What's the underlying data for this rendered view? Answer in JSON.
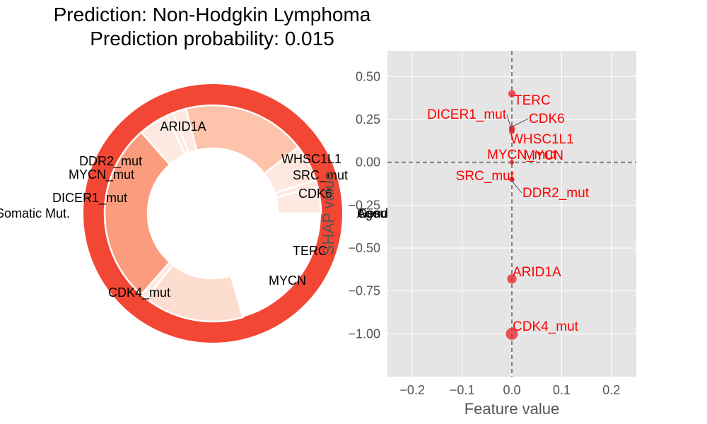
{
  "figure": {
    "title_line1": "Prediction: Non-Hodgkin Lymphoma",
    "title_line2": "Prediction probability: 0.015"
  },
  "chart_data": [
    {
      "type": "pie",
      "variant": "nested-donut",
      "colors": {
        "outer_ring": "#f24734",
        "arid1a": "#fdc3ab",
        "cdk4_mut": "#fc9c7e",
        "terc": "#fdddd0",
        "small": "#fee9e0",
        "separator": "#ffffff"
      },
      "outer_ring": {
        "labels": [
          "Somatic Mut.",
          "Age",
          "Gender",
          "Tissue"
        ],
        "fractions": [
          1.0,
          0.0,
          0.0,
          0.0
        ]
      },
      "inner_ring": {
        "slices": [
          {
            "label": "WHSC1L1",
            "fraction": 0.04,
            "shade": "small"
          },
          {
            "label": "SRC_mut",
            "fraction": 0.01,
            "shade": "small"
          },
          {
            "label": "CDK6",
            "fraction": 0.055,
            "shade": "small"
          },
          {
            "label": "ARID1A",
            "fraction": 0.185,
            "shade": "arid1a"
          },
          {
            "label": "DDR2_mut",
            "fraction": 0.02,
            "shade": "small"
          },
          {
            "label": "MYCN_mut",
            "fraction": 0.01,
            "shade": "small"
          },
          {
            "label": "DICER1_mut",
            "fraction": 0.045,
            "shade": "small"
          },
          {
            "label": "CDK4_mut",
            "fraction": 0.27,
            "shade": "cdk4_mut"
          },
          {
            "label": "MYCN",
            "fraction": 0.01,
            "shade": "small"
          },
          {
            "label": "TERC",
            "fraction": 0.15,
            "shade": "terc"
          }
        ]
      }
    },
    {
      "type": "scatter",
      "xlabel": "Feature value",
      "ylabel": "SHAP value",
      "xlim": [
        -0.25,
        0.25
      ],
      "ylim": [
        -1.25,
        0.65
      ],
      "xticks": [
        -0.2,
        -0.1,
        0.0,
        0.1,
        0.2
      ],
      "xtick_labels": [
        "−0.2",
        "−0.1",
        "0.0",
        "0.1",
        "0.2"
      ],
      "yticks": [
        0.5,
        0.25,
        0.0,
        -0.25,
        -0.5,
        -0.75,
        -1.0
      ],
      "ytick_labels": [
        "0.50",
        "0.25",
        "0.00",
        "−0.25",
        "−0.50",
        "−0.75",
        "−1.00"
      ],
      "grid": true,
      "colors": {
        "background": "#e5e5e5",
        "grid": "#ffffff",
        "point": "#e8202a",
        "label": "#ff0000",
        "refline": "#777777",
        "axis_text": "#555555"
      },
      "points": [
        {
          "label": "TERC",
          "x": 0.0,
          "y": 0.4
        },
        {
          "label": "CDK6",
          "x": 0.0,
          "y": 0.2
        },
        {
          "label": "DICER1_mut",
          "x": 0.0,
          "y": 0.19
        },
        {
          "label": "WHSC1L1",
          "x": 0.0,
          "y": 0.18
        },
        {
          "label": "MYCN_mut",
          "x": 0.0,
          "y": 0.0
        },
        {
          "label": "MYCN",
          "x": 0.0,
          "y": 0.0
        },
        {
          "label": "SRC_mut",
          "x": 0.0,
          "y": -0.1
        },
        {
          "label": "DDR2_mut",
          "x": 0.0,
          "y": -0.1
        },
        {
          "label": "ARID1A",
          "x": 0.0,
          "y": -0.68
        },
        {
          "label": "CDK4_mut",
          "x": 0.0,
          "y": -1.0
        }
      ]
    }
  ]
}
